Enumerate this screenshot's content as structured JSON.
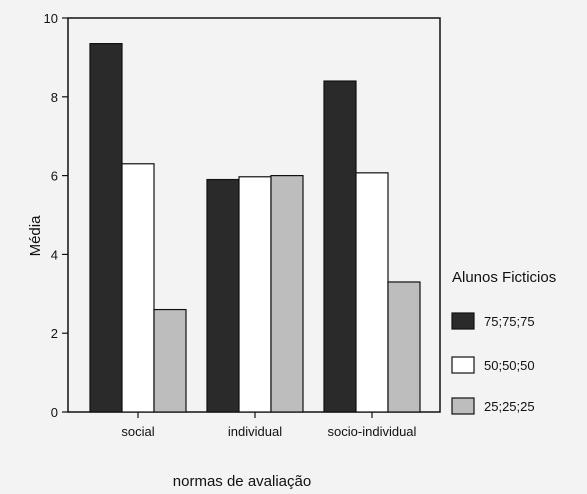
{
  "chart_data": {
    "type": "bar",
    "categories": [
      "social",
      "individual",
      "socio-individual"
    ],
    "series": [
      {
        "name": "75;75;75",
        "values": [
          9.35,
          5.9,
          8.4
        ],
        "color": "#2a2a2a"
      },
      {
        "name": "50;50;50",
        "values": [
          6.3,
          5.97,
          6.07
        ],
        "color": "#ffffff"
      },
      {
        "name": "25;25;25",
        "values": [
          2.6,
          6.0,
          3.3
        ],
        "color": "#bdbdbd"
      }
    ],
    "ylim": [
      0,
      10
    ],
    "yticks": [
      0,
      2,
      4,
      6,
      8,
      10
    ],
    "xlabel": "normas de avaliação",
    "ylabel": "Média",
    "legend_title": "Alunos Ficticios",
    "legend_position": "right",
    "grid": false
  }
}
